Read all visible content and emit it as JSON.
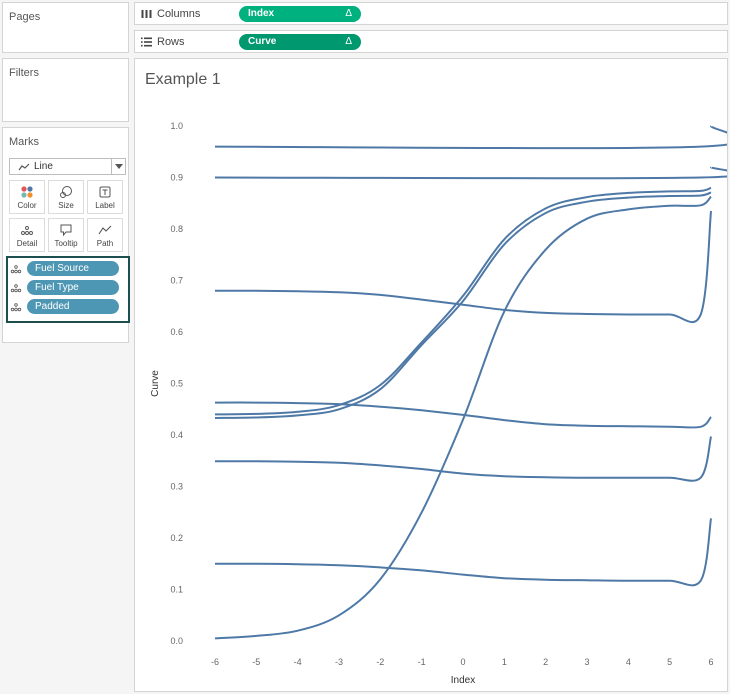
{
  "left_panel": {
    "pages_title": "Pages",
    "filters_title": "Filters",
    "marks": {
      "title": "Marks",
      "mark_type": "Line",
      "buttons": [
        {
          "label": "Color",
          "icon": "color-icon"
        },
        {
          "label": "Size",
          "icon": "size-icon"
        },
        {
          "label": "Label",
          "icon": "label-icon"
        },
        {
          "label": "Detail",
          "icon": "detail-icon"
        },
        {
          "label": "Tooltip",
          "icon": "tooltip-icon"
        },
        {
          "label": "Path",
          "icon": "path-icon"
        }
      ],
      "fields": [
        "Fuel Source",
        "Fuel Type",
        "Padded"
      ]
    }
  },
  "shelves": {
    "columns": {
      "label": "Columns",
      "pill": "Index",
      "pill_suffix": "Δ",
      "pill_color": "#00b180"
    },
    "rows": {
      "label": "Rows",
      "pill": "Curve",
      "pill_suffix": "Δ",
      "pill_color": "#00986f"
    }
  },
  "view": {
    "title": "Example 1"
  },
  "colors": {
    "line": "#4e79a7",
    "highlight_border": "#1d4f4f",
    "field_pill": "#4e97b4"
  },
  "chart_data": {
    "type": "line",
    "xlabel": "Index",
    "ylabel": "Curve",
    "xlim": [
      -6,
      6
    ],
    "ylim": [
      0,
      1
    ],
    "x_ticks": [
      "-6",
      "-5",
      "-4",
      "-3",
      "-2",
      "-1",
      "0",
      "1",
      "2",
      "3",
      "4",
      "5",
      "6"
    ],
    "y_ticks": [
      "0.0",
      "0.1",
      "0.2",
      "0.3",
      "0.4",
      "0.5",
      "0.6",
      "0.7",
      "0.8",
      "0.9",
      "1.0"
    ],
    "grid": false,
    "series": [
      {
        "x": [
          -6,
          5.75,
          6
        ],
        "values": [
          0.96,
          0.96,
          1.0
        ]
      },
      {
        "x": [
          -6,
          5.75,
          6
        ],
        "values": [
          0.9,
          0.9,
          0.92
        ]
      },
      {
        "x": [
          -6,
          -5,
          -4,
          -3,
          -2,
          -1,
          0,
          1,
          2,
          3,
          4,
          5,
          5.75,
          6
        ],
        "values": [
          0.68,
          0.68,
          0.679,
          0.677,
          0.672,
          0.663,
          0.653,
          0.643,
          0.637,
          0.635,
          0.634,
          0.634,
          0.634,
          0.835
        ]
      },
      {
        "x": [
          -6,
          -5,
          -4,
          -3,
          -2,
          -1,
          0,
          1,
          2,
          3,
          4,
          5,
          5.75,
          6
        ],
        "values": [
          0.463,
          0.463,
          0.462,
          0.46,
          0.455,
          0.448,
          0.439,
          0.429,
          0.421,
          0.418,
          0.417,
          0.416,
          0.416,
          0.435
        ]
      },
      {
        "x": [
          -6,
          -5,
          -4,
          -3,
          -2,
          -1,
          0,
          1,
          2,
          3,
          4,
          5,
          5.75,
          6
        ],
        "values": [
          0.349,
          0.349,
          0.348,
          0.346,
          0.341,
          0.334,
          0.325,
          0.32,
          0.318,
          0.317,
          0.317,
          0.317,
          0.317,
          0.397
        ]
      },
      {
        "x": [
          -6,
          -5,
          -4,
          -3,
          -2,
          -1,
          0,
          1,
          2,
          3,
          4,
          5,
          5.75,
          6
        ],
        "values": [
          0.15,
          0.15,
          0.149,
          0.147,
          0.143,
          0.137,
          0.129,
          0.122,
          0.119,
          0.118,
          0.117,
          0.117,
          0.117,
          0.238
        ]
      },
      {
        "x": [
          -6,
          -5,
          -4,
          -3,
          -2,
          -1,
          0,
          1,
          2,
          3,
          4,
          5,
          5.75,
          6
        ],
        "values": [
          0.44,
          0.441,
          0.445,
          0.458,
          0.497,
          0.58,
          0.67,
          0.78,
          0.84,
          0.862,
          0.87,
          0.873,
          0.874,
          0.88
        ]
      },
      {
        "x": [
          -6,
          -5,
          -4,
          -3,
          -2,
          -1,
          0,
          1,
          2,
          3,
          4,
          5,
          5.75,
          6
        ],
        "values": [
          0.433,
          0.434,
          0.438,
          0.45,
          0.489,
          0.575,
          0.66,
          0.77,
          0.831,
          0.853,
          0.861,
          0.864,
          0.865,
          0.871
        ]
      },
      {
        "x": [
          -6,
          -5,
          -4,
          -3,
          -2,
          -1,
          0,
          1,
          2,
          3,
          4,
          5,
          5.75,
          6
        ],
        "values": [
          0.005,
          0.01,
          0.02,
          0.05,
          0.12,
          0.25,
          0.43,
          0.64,
          0.76,
          0.82,
          0.838,
          0.845,
          0.846,
          0.863
        ]
      }
    ]
  }
}
